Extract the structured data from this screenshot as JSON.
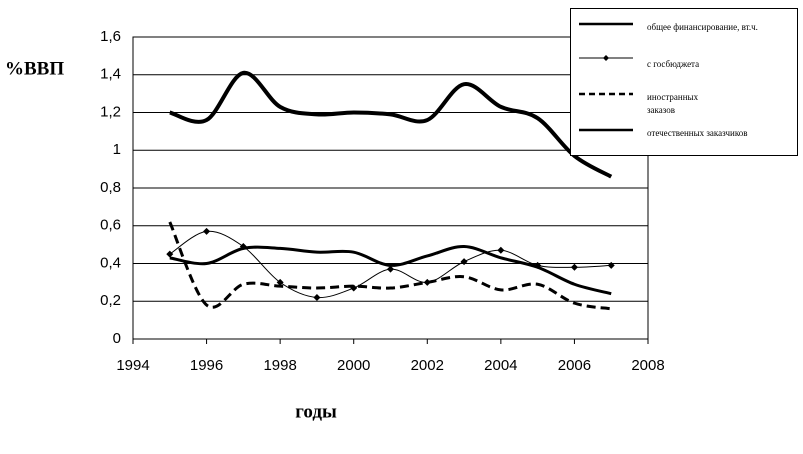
{
  "chart_data": {
    "type": "line",
    "y_label": "%ВВП",
    "x_label": "годы",
    "x": [
      1995,
      1996,
      1997,
      1998,
      1999,
      2000,
      2001,
      2002,
      2003,
      2004,
      2005,
      2006,
      2007
    ],
    "series": [
      {
        "name": "общее финансирование, вт.ч.",
        "color": "#000000",
        "width": 4,
        "style": "solid",
        "values": [
          1.2,
          1.16,
          1.41,
          1.23,
          1.19,
          1.2,
          1.19,
          1.16,
          1.35,
          1.23,
          1.17,
          0.97,
          0.86
        ]
      },
      {
        "name": "с госбюджета",
        "color": "#000000",
        "width": 1,
        "style": "solid",
        "marker": "diamond",
        "values": [
          0.45,
          0.57,
          0.49,
          0.3,
          0.22,
          0.27,
          0.37,
          0.3,
          0.41,
          0.47,
          0.39,
          0.38,
          0.39
        ]
      },
      {
        "name": "иностранных заказов",
        "color": "#000000",
        "width": 3,
        "style": "dashed",
        "values": [
          0.62,
          0.18,
          0.29,
          0.28,
          0.27,
          0.28,
          0.27,
          0.3,
          0.33,
          0.26,
          0.29,
          0.19,
          0.16
        ]
      },
      {
        "name": "отечественных заказчиков",
        "color": "#000000",
        "width": 3,
        "style": "solid",
        "values": [
          0.43,
          0.4,
          0.48,
          0.48,
          0.46,
          0.46,
          0.39,
          0.44,
          0.49,
          0.43,
          0.38,
          0.29,
          0.24
        ]
      }
    ],
    "xlim": [
      1994,
      2008
    ],
    "xticks": [
      1994,
      1996,
      1998,
      2000,
      2002,
      2004,
      2006,
      2008
    ],
    "ylim": [
      0,
      1.6
    ],
    "yticks": [
      0,
      {
        "value": 0.2,
        "label": "0,2"
      },
      {
        "value": 0.4,
        "label": "0,4"
      },
      {
        "value": 0.6,
        "label": "0,6"
      },
      {
        "value": 0.8,
        "label": "0,8"
      },
      1,
      {
        "value": 1.2,
        "label": "1,2"
      },
      {
        "value": 1.4,
        "label": "1,4"
      },
      {
        "value": 1.6,
        "label": "1,6"
      }
    ],
    "grid": true,
    "legend": "upper right"
  }
}
